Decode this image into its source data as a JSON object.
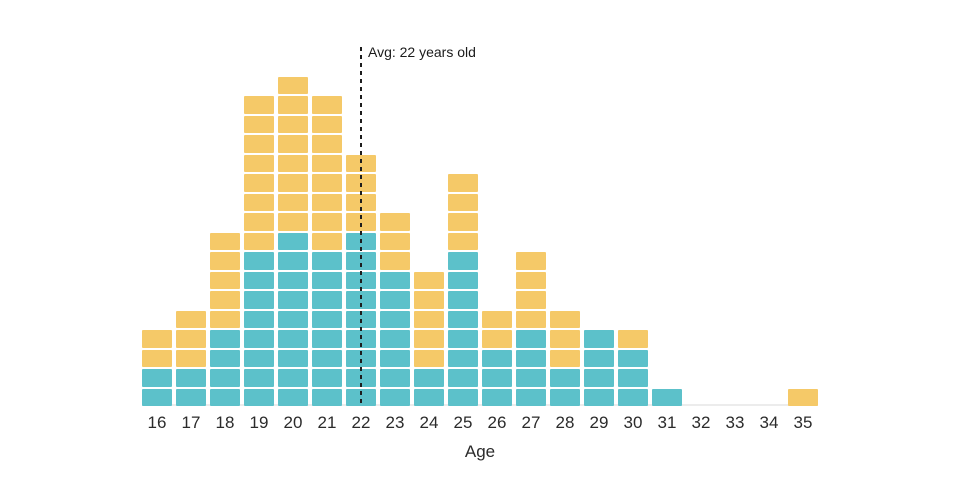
{
  "chart_data": {
    "type": "bar",
    "subtype": "stacked-unit-histogram",
    "title": "",
    "xlabel": "Age",
    "ylabel": "",
    "grid": false,
    "legend": "none",
    "categories": [
      16,
      17,
      18,
      19,
      20,
      21,
      22,
      23,
      24,
      25,
      26,
      27,
      28,
      29,
      30,
      31,
      32,
      33,
      34,
      35
    ],
    "series": [
      {
        "name": "teal-bottom-segment",
        "color": "#5cc1ca",
        "values": [
          2,
          2,
          4,
          8,
          9,
          8,
          9,
          7,
          2,
          8,
          3,
          4,
          2,
          4,
          3,
          1,
          0,
          0,
          0,
          0
        ]
      },
      {
        "name": "yellow-top-segment",
        "color": "#f5c968",
        "values": [
          2,
          3,
          5,
          8,
          8,
          8,
          4,
          3,
          5,
          4,
          2,
          4,
          3,
          0,
          1,
          0,
          0,
          0,
          0,
          1
        ]
      }
    ],
    "totals": [
      4,
      5,
      9,
      16,
      17,
      16,
      13,
      10,
      7,
      12,
      5,
      8,
      5,
      4,
      4,
      1,
      0,
      0,
      0,
      1
    ],
    "annotation": {
      "label": "Avg: 22 years old",
      "x_value": 22,
      "line_style": "dashed",
      "line_color": "#1d1d1d"
    },
    "axis_line_color": "#ececec",
    "background_color": "#ffffff",
    "text_color": "#2b2b2b"
  }
}
